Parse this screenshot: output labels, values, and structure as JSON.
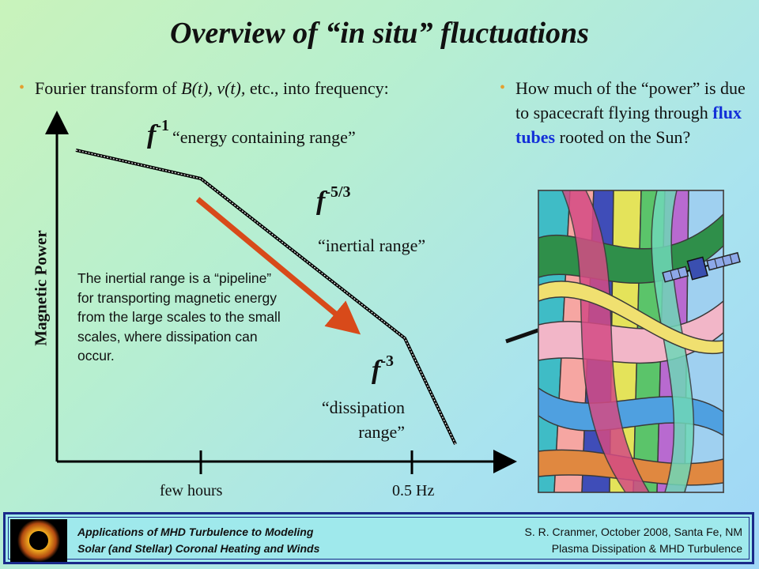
{
  "slide": {
    "title": "Overview of “in situ” fluctuations",
    "bullet_left": {
      "prefix": "Fourier transform of ",
      "vars": "B(t), v(t),",
      "suffix": " etc., into frequency:"
    },
    "bullet_right": {
      "before": "How much of the “power” is due to spacecraft flying through ",
      "highlight": "flux tubes",
      "after": " rooted on the Sun?"
    }
  },
  "diagram": {
    "y_axis_label": "Magnetic Power",
    "x_ticks": [
      "few hours",
      "0.5 Hz"
    ],
    "segments": [
      {
        "f": "f",
        "exponent": "-1",
        "label": "“energy containing range”"
      },
      {
        "f": "f",
        "exponent": "-5/3",
        "label": "“inertial range”"
      },
      {
        "f": "f",
        "exponent": "-3",
        "label_line1": "“dissipation",
        "label_line2": "range”"
      }
    ],
    "note": "The inertial range is a “pipeline” for transporting magnetic energy from the large scales to the small scales, where dissipation can occur.",
    "arrow_color": "#d84a1a"
  },
  "footer": {
    "left_line1": "Applications of MHD Turbulence to Modeling",
    "left_line2": "Solar (and Stellar) Coronal Heating and Winds",
    "right_line1": "S. R. Cranmer,  October 2008, Santa Fe, NM",
    "right_line2": "Plasma Dissipation & MHD Turbulence"
  },
  "icons": [
    "bullet-dot-icon",
    "eclipse-sun-icon",
    "spacecraft-icon"
  ]
}
